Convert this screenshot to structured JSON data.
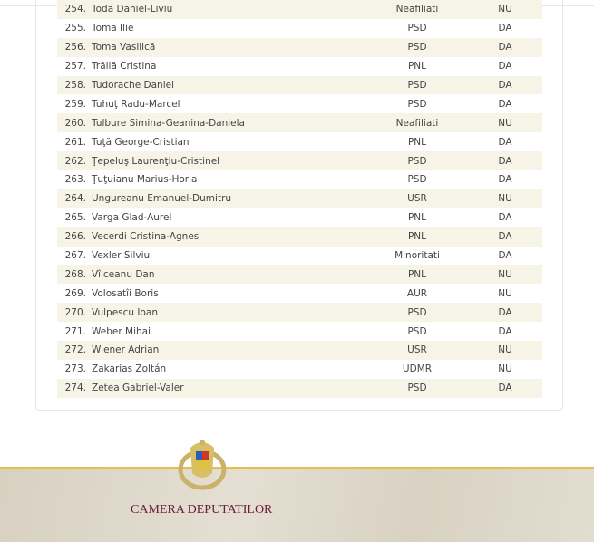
{
  "rows": [
    [
      "254.",
      "Toda Daniel-Liviu",
      "Neafiliati",
      "NU"
    ],
    [
      "255.",
      "Toma Ilie",
      "PSD",
      "DA"
    ],
    [
      "256.",
      "Toma Vasilică",
      "PSD",
      "DA"
    ],
    [
      "257.",
      "Trăilă Cristina",
      "PNL",
      "DA"
    ],
    [
      "258.",
      "Tudorache Daniel",
      "PSD",
      "DA"
    ],
    [
      "259.",
      "Tuhuţ Radu-Marcel",
      "PSD",
      "DA"
    ],
    [
      "260.",
      "Tulbure Simina-Geanina-Daniela",
      "Neafiliati",
      "NU"
    ],
    [
      "261.",
      "Tuţă George-Cristian",
      "PNL",
      "DA"
    ],
    [
      "262.",
      "Ţepeluş Laurenţiu-Cristinel",
      "PSD",
      "DA"
    ],
    [
      "263.",
      "Ţuţuianu Marius-Horia",
      "PSD",
      "DA"
    ],
    [
      "264.",
      "Ungureanu Emanuel-Dumitru",
      "USR",
      "NU"
    ],
    [
      "265.",
      "Varga Glad-Aurel",
      "PNL",
      "DA"
    ],
    [
      "266.",
      "Vecerdi Cristina-Agnes",
      "PNL",
      "DA"
    ],
    [
      "267.",
      "Vexler Silviu",
      "Minoritati",
      "DA"
    ],
    [
      "268.",
      "Vîlceanu Dan",
      "PNL",
      "NU"
    ],
    [
      "269.",
      "Volosatîi Boris",
      "AUR",
      "NU"
    ],
    [
      "270.",
      "Vulpescu Ioan",
      "PSD",
      "DA"
    ],
    [
      "271.",
      "Weber Mihai",
      "PSD",
      "DA"
    ],
    [
      "272.",
      "Wiener Adrian",
      "USR",
      "NU"
    ],
    [
      "273.",
      "Zakarias Zoltán",
      "UDMR",
      "NU"
    ],
    [
      "274.",
      "Zetea Gabriel-Valer",
      "PSD",
      "DA"
    ]
  ],
  "footer": {
    "title": "CAMERA DEPUTATILOR",
    "crest_text": "CAMERA DEPUTATILOR"
  },
  "colors": {
    "row_alt": "#f6f4e6",
    "footer_border": "#e8be4a",
    "footer_title": "#6b1a3a"
  }
}
